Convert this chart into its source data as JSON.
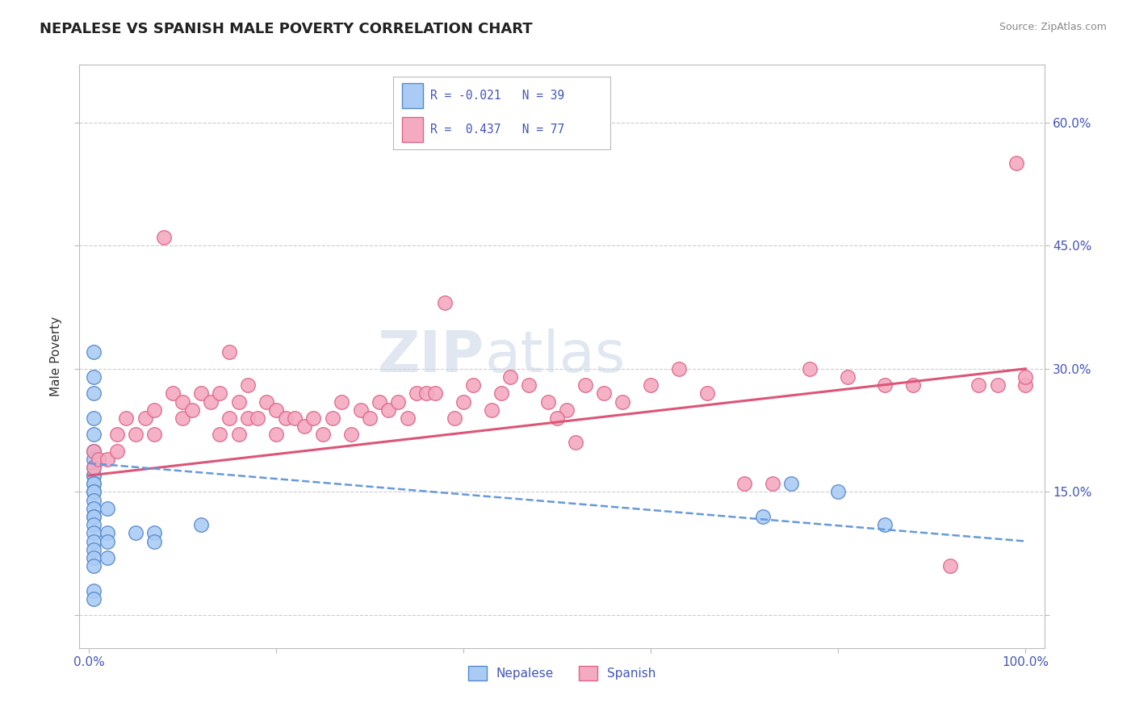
{
  "title": "NEPALESE VS SPANISH MALE POVERTY CORRELATION CHART",
  "source": "Source: ZipAtlas.com",
  "ylabel": "Male Poverty",
  "xlim": [
    -0.01,
    1.02
  ],
  "ylim": [
    -0.04,
    0.67
  ],
  "yticks": [
    0.0,
    0.15,
    0.3,
    0.45,
    0.6
  ],
  "ytick_labels": [
    "",
    "15.0%",
    "30.0%",
    "45.0%",
    "60.0%"
  ],
  "xticks": [
    0.0,
    0.2,
    0.4,
    0.6,
    0.8,
    1.0
  ],
  "xtick_labels": [
    "0.0%",
    "",
    "",
    "",
    "",
    "100.0%"
  ],
  "nepalese_R": -0.021,
  "nepalese_N": 39,
  "spanish_R": 0.437,
  "spanish_N": 77,
  "nepalese_color": "#aaccf4",
  "spanish_color": "#f4aac0",
  "nepalese_edge_color": "#5588cc",
  "spanish_edge_color": "#dd6688",
  "nepalese_line_color": "#6699dd",
  "spanish_line_color": "#dd5577",
  "grid_color": "#cccccc",
  "title_color": "#222222",
  "axis_label_color": "#4455bb",
  "watermark_color": "#ccd8e8",
  "nepalese_x": [
    0.005,
    0.005,
    0.005,
    0.005,
    0.005,
    0.005,
    0.005,
    0.005,
    0.005,
    0.005,
    0.005,
    0.005,
    0.005,
    0.005,
    0.005,
    0.005,
    0.005,
    0.005,
    0.005,
    0.005,
    0.005,
    0.005,
    0.005,
    0.005,
    0.005,
    0.005,
    0.005,
    0.02,
    0.02,
    0.02,
    0.02,
    0.05,
    0.07,
    0.07,
    0.12,
    0.72,
    0.75,
    0.8,
    0.85
  ],
  "nepalese_y": [
    0.32,
    0.29,
    0.27,
    0.24,
    0.22,
    0.2,
    0.2,
    0.19,
    0.18,
    0.17,
    0.17,
    0.16,
    0.16,
    0.15,
    0.15,
    0.14,
    0.13,
    0.12,
    0.12,
    0.11,
    0.1,
    0.09,
    0.08,
    0.07,
    0.06,
    0.03,
    0.02,
    0.13,
    0.1,
    0.09,
    0.07,
    0.1,
    0.1,
    0.09,
    0.11,
    0.12,
    0.16,
    0.15,
    0.11
  ],
  "spanish_x": [
    0.005,
    0.005,
    0.01,
    0.02,
    0.03,
    0.03,
    0.04,
    0.05,
    0.06,
    0.07,
    0.07,
    0.09,
    0.1,
    0.1,
    0.11,
    0.12,
    0.13,
    0.14,
    0.14,
    0.15,
    0.16,
    0.16,
    0.17,
    0.18,
    0.19,
    0.2,
    0.2,
    0.21,
    0.22,
    0.23,
    0.24,
    0.25,
    0.26,
    0.27,
    0.28,
    0.29,
    0.3,
    0.31,
    0.32,
    0.33,
    0.34,
    0.35,
    0.36,
    0.37,
    0.38,
    0.39,
    0.4,
    0.41,
    0.43,
    0.44,
    0.45,
    0.47,
    0.49,
    0.51,
    0.53,
    0.55,
    0.57,
    0.6,
    0.63,
    0.66,
    0.7,
    0.73,
    0.77,
    0.81,
    0.85,
    0.88,
    0.92,
    0.95,
    0.97,
    0.99,
    1.0,
    1.0,
    0.5,
    0.52,
    0.15,
    0.17,
    0.08
  ],
  "spanish_y": [
    0.2,
    0.18,
    0.19,
    0.19,
    0.22,
    0.2,
    0.24,
    0.22,
    0.24,
    0.25,
    0.22,
    0.27,
    0.26,
    0.24,
    0.25,
    0.27,
    0.26,
    0.22,
    0.27,
    0.24,
    0.26,
    0.22,
    0.24,
    0.24,
    0.26,
    0.25,
    0.22,
    0.24,
    0.24,
    0.23,
    0.24,
    0.22,
    0.24,
    0.26,
    0.22,
    0.25,
    0.24,
    0.26,
    0.25,
    0.26,
    0.24,
    0.27,
    0.27,
    0.27,
    0.38,
    0.24,
    0.26,
    0.28,
    0.25,
    0.27,
    0.29,
    0.28,
    0.26,
    0.25,
    0.28,
    0.27,
    0.26,
    0.28,
    0.3,
    0.27,
    0.16,
    0.16,
    0.3,
    0.29,
    0.28,
    0.28,
    0.06,
    0.28,
    0.28,
    0.55,
    0.28,
    0.29,
    0.24,
    0.21,
    0.32,
    0.28,
    0.46
  ]
}
